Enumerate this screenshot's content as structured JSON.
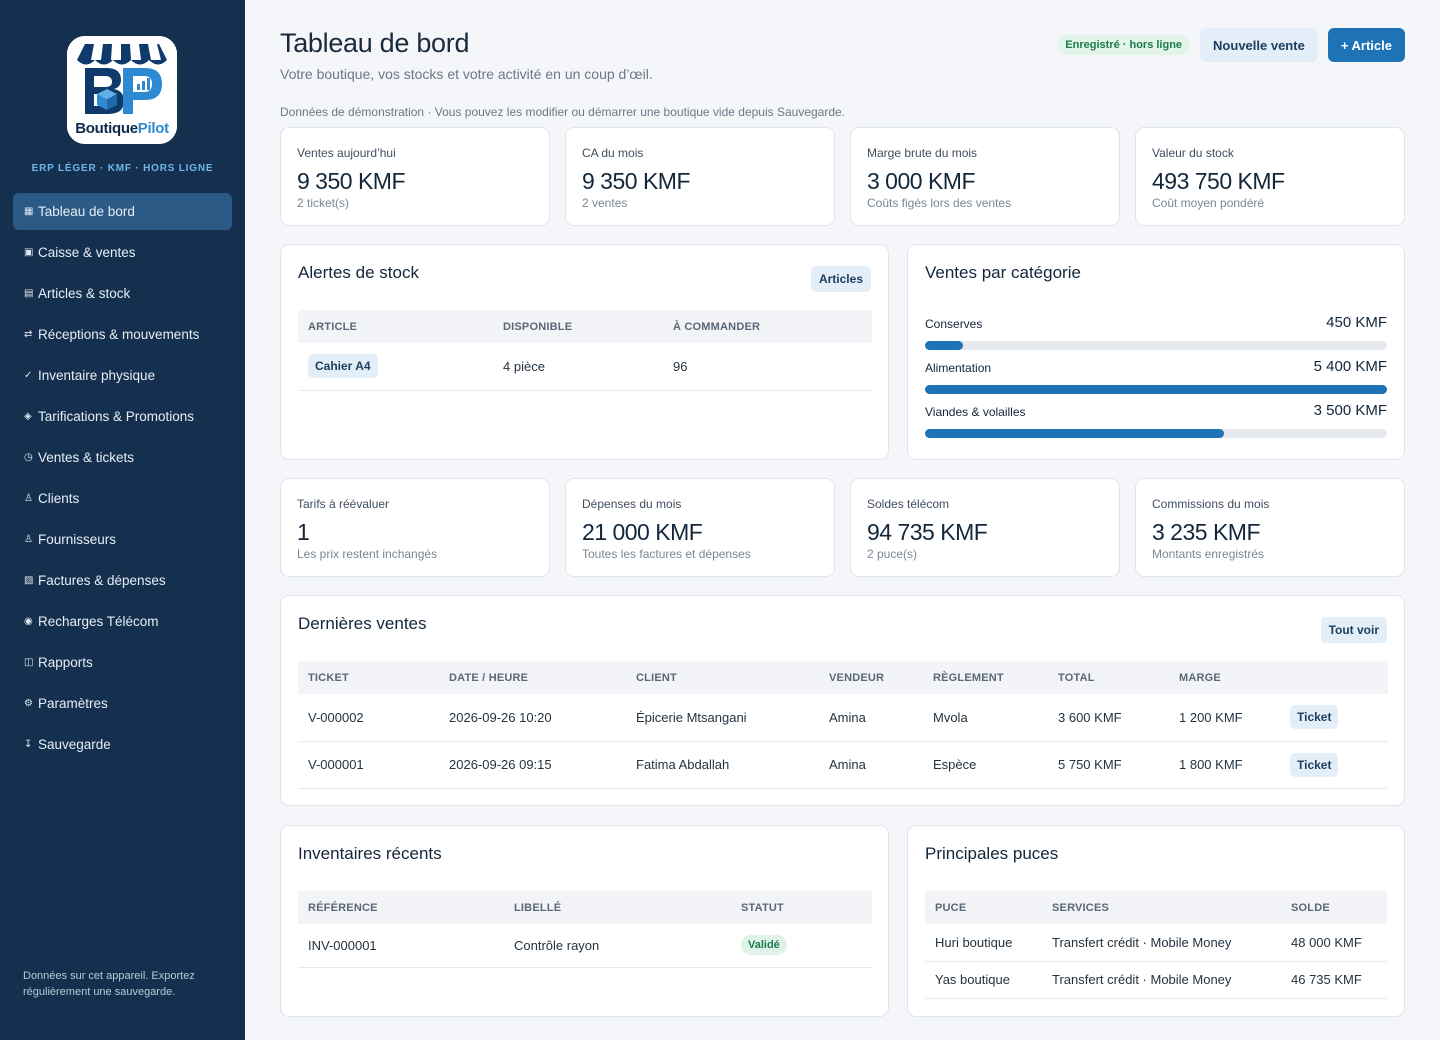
{
  "brand": {
    "logo_word_1": "Boutique",
    "logo_word_2": "Pilot",
    "logo_letters": "BP",
    "tagline": "ERP LÉGER · KMF · HORS LIGNE",
    "accent": "#1d73b5",
    "sidebar_bg": "#15304e"
  },
  "sidebar": {
    "items": [
      {
        "icon": "dashboard-icon",
        "glyph": "▦",
        "label": "Tableau de bord",
        "active": true
      },
      {
        "icon": "register-icon",
        "glyph": "▣",
        "label": "Caisse & ventes"
      },
      {
        "icon": "box-icon",
        "glyph": "▤",
        "label": "Articles & stock"
      },
      {
        "icon": "transfer-icon",
        "glyph": "⇄",
        "label": "Réceptions & mouvements"
      },
      {
        "icon": "check-icon",
        "glyph": "✓",
        "label": "Inventaire physique"
      },
      {
        "icon": "tag-icon",
        "glyph": "◈",
        "label": "Tarifications & Promotions"
      },
      {
        "icon": "clock-icon",
        "glyph": "◷",
        "label": "Ventes & tickets"
      },
      {
        "icon": "user-icon",
        "glyph": "♙",
        "label": "Clients"
      },
      {
        "icon": "supplier-icon",
        "glyph": "♙",
        "label": "Fournisseurs"
      },
      {
        "icon": "invoice-icon",
        "glyph": "▧",
        "label": "Factures & dépenses"
      },
      {
        "icon": "signal-icon",
        "glyph": "◉",
        "label": "Recharges Télécom"
      },
      {
        "icon": "report-icon",
        "glyph": "◫",
        "label": "Rapports"
      },
      {
        "icon": "gear-icon",
        "glyph": "⚙",
        "label": "Paramètres"
      },
      {
        "icon": "download-icon",
        "glyph": "↧",
        "label": "Sauvegarde"
      }
    ],
    "footer": "Données sur cet appareil. Exportez régulièrement une sauvegarde."
  },
  "header": {
    "title": "Tableau de bord",
    "subtitle": "Votre boutique, vos stocks et votre activité en un coup d’œil.",
    "demo_note": "Données de démonstration · Vous pouvez les modifier ou démarrer une boutique vide depuis Sauvegarde.",
    "offline_badge": "Enregistré · hors ligne",
    "new_sale_label": "Nouvelle vente",
    "add_article_label": "+ Article"
  },
  "kpis_top": [
    {
      "label": "Ventes aujourd’hui",
      "value": "9 350 KMF",
      "sub": "2 ticket(s)"
    },
    {
      "label": "CA du mois",
      "value": "9 350 KMF",
      "sub": "2 ventes"
    },
    {
      "label": "Marge brute du mois",
      "value": "3 000 KMF",
      "sub": "Coûts figés lors des ventes"
    },
    {
      "label": "Valeur du stock",
      "value": "493 750 KMF",
      "sub": "Coût moyen pondéré"
    }
  ],
  "stock_alerts": {
    "title": "Alertes de stock",
    "button": "Articles",
    "headers": [
      "ARTICLE",
      "DISPONIBLE",
      "À COMMANDER"
    ],
    "rows": [
      {
        "article": "Cahier A4",
        "available": "4 pièce",
        "to_order": "96"
      }
    ]
  },
  "sales_by_category": {
    "title": "Ventes par catégorie",
    "items": [
      {
        "name": "Conserves",
        "amount": "450 KMF",
        "value": 450
      },
      {
        "name": "Alimentation",
        "amount": "5 400 KMF",
        "value": 5400
      },
      {
        "name": "Viandes & volailles",
        "amount": "3 500 KMF",
        "value": 3500
      }
    ]
  },
  "kpis_bottom": [
    {
      "label": "Tarifs à réévaluer",
      "value": "1",
      "sub": "Les prix restent inchangés"
    },
    {
      "label": "Dépenses du mois",
      "value": "21 000 KMF",
      "sub": "Toutes les factures et dépenses"
    },
    {
      "label": "Soldes télécom",
      "value": "94 735 KMF",
      "sub": "2 puce(s)"
    },
    {
      "label": "Commissions du mois",
      "value": "3 235 KMF",
      "sub": "Montants enregistrés"
    }
  ],
  "recent_sales": {
    "title": "Dernières ventes",
    "button": "Tout voir",
    "headers": [
      "TICKET",
      "DATE / HEURE",
      "CLIENT",
      "VENDEUR",
      "RÈGLEMENT",
      "TOTAL",
      "MARGE",
      ""
    ],
    "rows": [
      {
        "ticket": "V-000002",
        "datetime": "2026-09-26 10:20",
        "client": "Épicerie Mtsangani",
        "seller": "Amina",
        "payment": "Mvola",
        "total": "3 600 KMF",
        "margin": "1 200 KMF",
        "action": "Ticket"
      },
      {
        "ticket": "V-000001",
        "datetime": "2026-09-26 09:15",
        "client": "Fatima Abdallah",
        "seller": "Amina",
        "payment": "Espèce",
        "total": "5 750 KMF",
        "margin": "1 800 KMF",
        "action": "Ticket"
      }
    ]
  },
  "recent_inventories": {
    "title": "Inventaires récents",
    "headers": [
      "RÉFÉRENCE",
      "LIBELLÉ",
      "STATUT"
    ],
    "rows": [
      {
        "ref": "INV-000001",
        "label": "Contrôle rayon",
        "status": "Validé"
      }
    ]
  },
  "top_sims": {
    "title": "Principales puces",
    "headers": [
      "PUCE",
      "SERVICES",
      "SOLDE"
    ],
    "rows": [
      {
        "sim": "Huri boutique",
        "services": "Transfert crédit · Mobile Money",
        "balance": "48 000 KMF"
      },
      {
        "sim": "Yas boutique",
        "services": "Transfert crédit · Mobile Money",
        "balance": "46 735 KMF"
      }
    ]
  }
}
